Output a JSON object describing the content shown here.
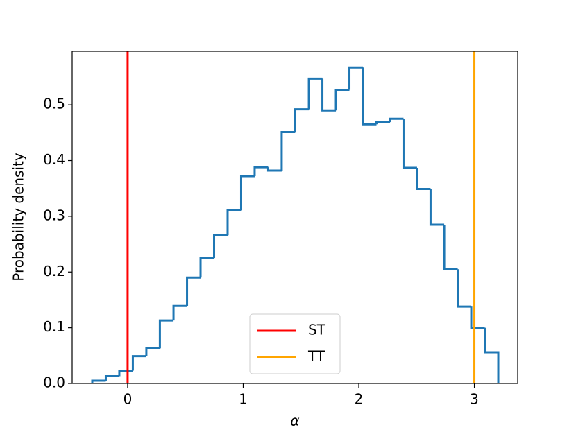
{
  "chart_data": {
    "type": "histogram-step",
    "x_label": "α",
    "y_label": "Probability density",
    "bins": [
      -0.306,
      -0.189,
      -0.072,
      0.045,
      0.162,
      0.279,
      0.397,
      0.514,
      0.631,
      0.748,
      0.865,
      0.982,
      1.099,
      1.216,
      1.333,
      1.45,
      1.568,
      1.685,
      1.802,
      1.919,
      2.036,
      2.153,
      2.27,
      2.387,
      2.504,
      2.621,
      2.739,
      2.856,
      2.973,
      3.09,
      3.207
    ],
    "values": [
      0.005,
      0.013,
      0.023,
      0.049,
      0.063,
      0.113,
      0.139,
      0.19,
      0.225,
      0.266,
      0.311,
      0.372,
      0.388,
      0.382,
      0.451,
      0.492,
      0.547,
      0.49,
      0.527,
      0.567,
      0.465,
      0.469,
      0.475,
      0.387,
      0.349,
      0.285,
      0.205,
      0.138,
      0.1,
      0.056
    ],
    "color": "#1f77b4",
    "vlines": [
      {
        "name": "ST",
        "x": 0,
        "color": "#ff0000"
      },
      {
        "name": "TT",
        "x": 3,
        "color": "#ffa500"
      }
    ],
    "xlim": [
      -0.48,
      3.375
    ],
    "ylim": [
      0,
      0.596
    ],
    "xticks": [
      0,
      1,
      2,
      3
    ],
    "yticks": [
      {
        "value": 0,
        "label": "0.0"
      },
      0.1,
      0.2,
      0.3,
      0.4,
      0.5
    ],
    "legend": "lower center"
  }
}
